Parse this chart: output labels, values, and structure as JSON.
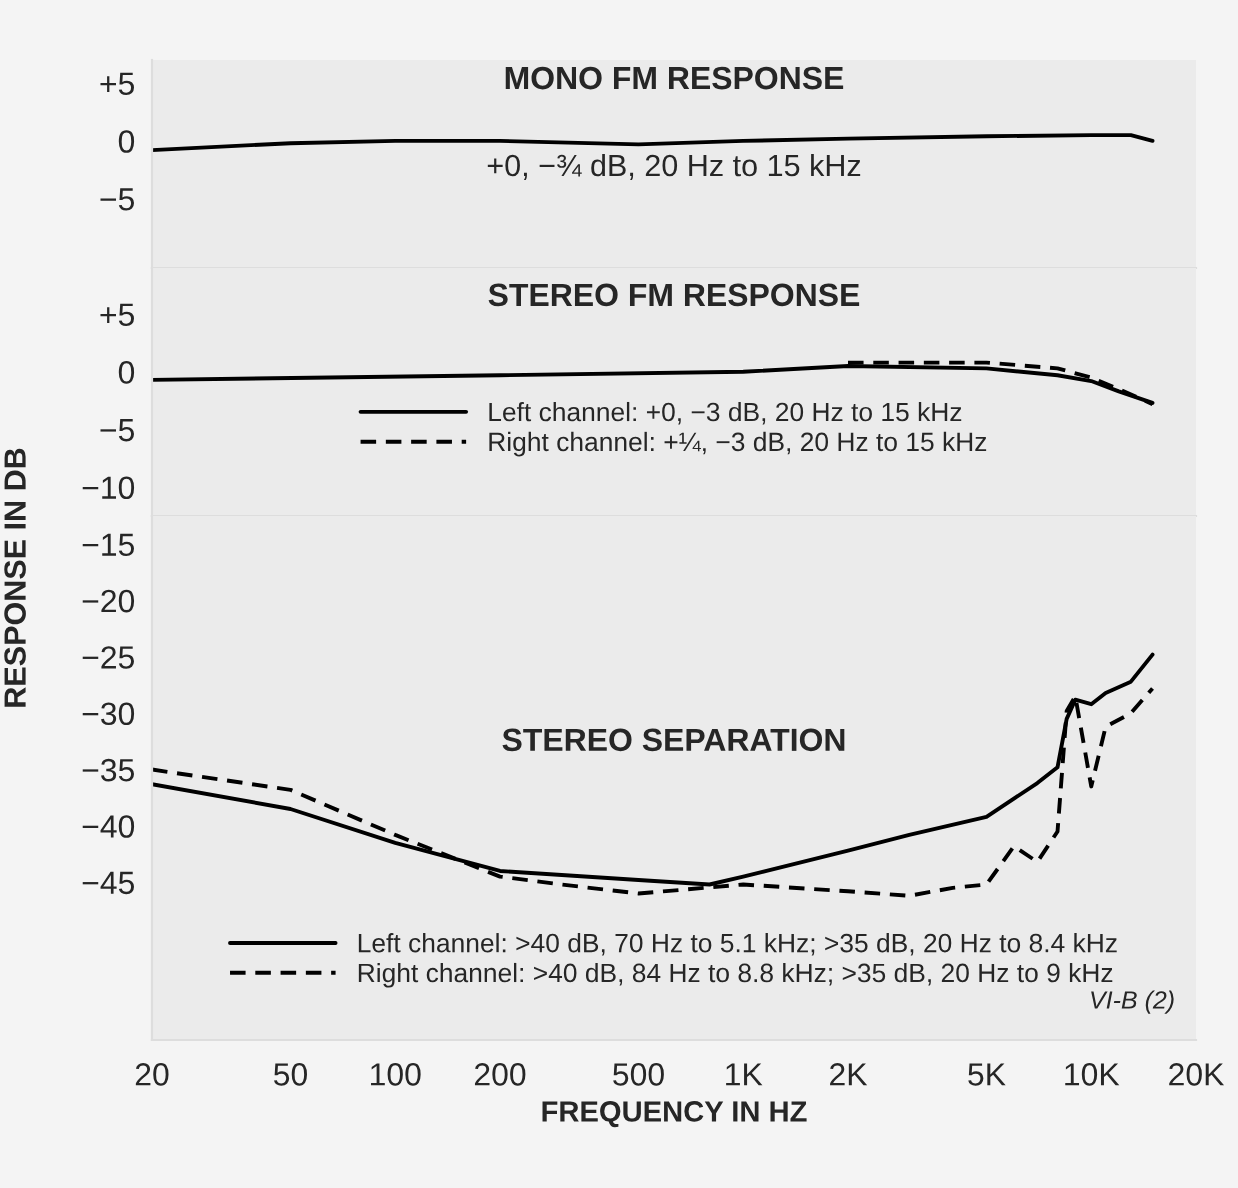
{
  "chart_data": [
    {
      "type": "line",
      "title": "MONO FM RESPONSE",
      "annotations": [
        "+0, −¾ dB, 20 Hz to 15 kHz"
      ],
      "log": "x",
      "xlim": [
        20,
        20000
      ],
      "ylim": [
        -11,
        7
      ],
      "yticks": [
        {
          "value": 5,
          "label": "+5"
        },
        0,
        {
          "value": -5,
          "label": "−5"
        }
      ],
      "tick_labels": "y",
      "grid": false,
      "legend": false,
      "series": [
        {
          "color": "#000000",
          "line_style": "solid",
          "x": [
            20,
            50,
            100,
            200,
            500,
            1000,
            2000,
            5000,
            10000,
            13000,
            15000
          ],
          "values": [
            -0.8,
            -0.2,
            0,
            0,
            -0.3,
            0,
            0.2,
            0.4,
            0.5,
            0.5,
            0
          ]
        }
      ]
    },
    {
      "type": "line",
      "title": "STEREO FM RESPONSE",
      "ylabel": "RESPONSE IN DB",
      "log": "x",
      "xlim": [
        20,
        20000
      ],
      "ylim": [
        -12.5,
        9
      ],
      "yticks": [
        {
          "value": 5,
          "label": "+5"
        },
        0,
        {
          "value": -5,
          "label": "−5"
        },
        {
          "value": -10,
          "label": "−10"
        }
      ],
      "tick_labels": "y",
      "grid": false,
      "legend": "center",
      "series": [
        {
          "name": "Left channel: +0, −3 dB, 20 Hz to 15 kHz",
          "color": "#000000",
          "line_style": "solid",
          "x": [
            20,
            200,
            1000,
            2000,
            5000,
            8000,
            10000,
            12000,
            15000
          ],
          "values": [
            -0.7,
            -0.3,
            0,
            0.5,
            0.3,
            -0.3,
            -0.8,
            -1.7,
            -2.7
          ]
        },
        {
          "name": "Right channel: +¼, −3 dB, 20 Hz to 15 kHz",
          "color": "#000000",
          "line_style": "dashed",
          "x": [
            2000,
            5000,
            8000,
            10000,
            12000,
            15000
          ],
          "values": [
            0.8,
            0.8,
            0.3,
            -0.5,
            -1.5,
            -2.8
          ]
        }
      ]
    },
    {
      "type": "line",
      "title": "STEREO SEPARATION",
      "xlabel": "FREQUENCY IN HZ",
      "annotations": [
        "VI-B (2)"
      ],
      "log": "x",
      "xlim": [
        20,
        20000
      ],
      "ylim": [
        -59,
        -12.5
      ],
      "xticks": [
        20,
        50,
        100,
        200,
        500,
        {
          "value": 1000,
          "label": "1K"
        },
        {
          "value": 2000,
          "label": "2K"
        },
        {
          "value": 5000,
          "label": "5K"
        },
        {
          "value": 10000,
          "label": "10K"
        },
        {
          "value": 20000,
          "label": "20K"
        }
      ],
      "yticks": [
        {
          "value": -15,
          "label": "−15"
        },
        {
          "value": -20,
          "label": "−20"
        },
        {
          "value": -25,
          "label": "−25"
        },
        {
          "value": -30,
          "label": "−30"
        },
        {
          "value": -35,
          "label": "−35"
        },
        {
          "value": -40,
          "label": "−40"
        },
        {
          "value": -45,
          "label": "−45"
        }
      ],
      "grid": false,
      "legend": "bottom",
      "series": [
        {
          "name": "Left channel: >40 dB, 70 Hz to 5.1 kHz; >35 dB, 20 Hz to 8.4 kHz",
          "color": "#000000",
          "line_style": "solid",
          "x": [
            20,
            50,
            100,
            200,
            500,
            800,
            1000,
            2000,
            3000,
            5000,
            7000,
            8000,
            8500,
            9000,
            10000,
            11000,
            13000,
            15000
          ],
          "values": [
            -36.3,
            -38.5,
            -41.5,
            -44,
            -44.8,
            -45.2,
            -44.5,
            -42.2,
            -40.8,
            -39.2,
            -36.2,
            -34.8,
            -30.5,
            -28.8,
            -29.2,
            -28.2,
            -27.2,
            -24.8
          ]
        },
        {
          "name": "Right channel: >40 dB, 84 Hz to 8.8 kHz; >35 dB, 20 Hz to 9 kHz",
          "color": "#000000",
          "line_style": "dashed",
          "x": [
            20,
            50,
            100,
            200,
            300,
            500,
            1000,
            2000,
            3000,
            4000,
            5000,
            6000,
            7000,
            8000,
            8500,
            9000,
            10000,
            11000,
            13000,
            15000
          ],
          "values": [
            -35,
            -36.8,
            -40.8,
            -44.5,
            -45.2,
            -46,
            -45.2,
            -45.8,
            -46.2,
            -45.5,
            -45.2,
            -41.8,
            -43.2,
            -40.5,
            -29.8,
            -28.5,
            -36.5,
            -31.2,
            -30,
            -27.8
          ]
        }
      ]
    }
  ]
}
